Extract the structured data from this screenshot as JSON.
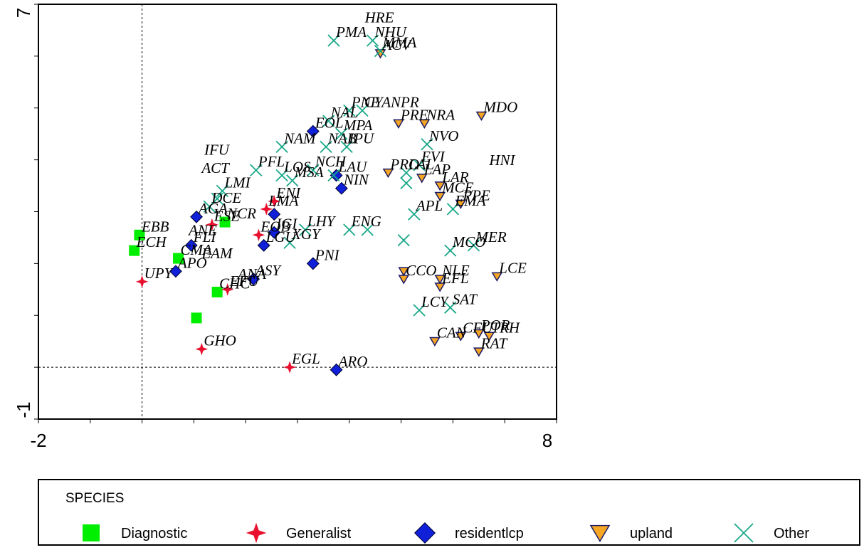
{
  "chart_data": {
    "type": "scatter",
    "xlim": [
      -2,
      8
    ],
    "ylim": [
      -1,
      7
    ],
    "x_ticks": [
      "-2",
      "8"
    ],
    "y_ticks": [
      "7",
      "-1"
    ],
    "reference_lines": {
      "x": 0,
      "y": 0
    },
    "grid": false,
    "legend": {
      "title": "SPECIES",
      "position": "bottom",
      "entries": [
        {
          "group": "diagnostic",
          "label": "Diagnostic",
          "marker": "square",
          "color": "#00EE00"
        },
        {
          "group": "generalist",
          "label": "Generalist",
          "marker": "star",
          "color": "#E8102E"
        },
        {
          "group": "resident",
          "label": "residentlcp",
          "marker": "diamond",
          "color": "#1020D8"
        },
        {
          "group": "upland",
          "label": "upland",
          "marker": "triangle-down",
          "color": "#F5A623"
        },
        {
          "group": "other",
          "label": "Other",
          "marker": "cross",
          "color": "#18A888"
        }
      ]
    },
    "series": [
      {
        "group": "diagnostic",
        "points": [
          {
            "x": -0.05,
            "y": 2.55,
            "label": "EBB"
          },
          {
            "x": -0.15,
            "y": 2.25,
            "label": "ECH"
          },
          {
            "x": 0.7,
            "y": 2.1,
            "label": "CMA"
          },
          {
            "x": 1.6,
            "y": 2.8,
            "label": "NCR"
          },
          {
            "x": 1.45,
            "y": 1.45,
            "label": "CHC"
          },
          {
            "x": 1.05,
            "y": 0.95,
            "label": ""
          }
        ]
      },
      {
        "group": "generalist",
        "points": [
          {
            "x": 0.0,
            "y": 1.65,
            "label": "UPY"
          },
          {
            "x": 1.35,
            "y": 2.75,
            "label": "ESE"
          },
          {
            "x": 2.4,
            "y": 3.05,
            "label": "LMA"
          },
          {
            "x": 2.55,
            "y": 3.2,
            "label": "ENI"
          },
          {
            "x": 2.25,
            "y": 2.55,
            "label": "EOB"
          },
          {
            "x": 1.65,
            "y": 1.5,
            "label": "EFU"
          },
          {
            "x": 1.15,
            "y": 0.35,
            "label": "GHO"
          },
          {
            "x": 2.85,
            "y": 0.0,
            "label": "EGL"
          }
        ]
      },
      {
        "group": "resident",
        "points": [
          {
            "x": 1.05,
            "y": 2.9,
            "label": "AGA"
          },
          {
            "x": 0.95,
            "y": 2.35,
            "label": "FLI"
          },
          {
            "x": 0.65,
            "y": 1.85,
            "label": "APO"
          },
          {
            "x": 2.35,
            "y": 2.35,
            "label": "LGU"
          },
          {
            "x": 2.55,
            "y": 2.6,
            "label": "IGI"
          },
          {
            "x": 2.55,
            "y": 2.95,
            "label": ""
          },
          {
            "x": 3.3,
            "y": 2.0,
            "label": "PNI"
          },
          {
            "x": 2.15,
            "y": 1.7,
            "label": "ASY"
          },
          {
            "x": 3.3,
            "y": 4.55,
            "label": "EOL"
          },
          {
            "x": 3.75,
            "y": 3.7,
            "label": "LAU"
          },
          {
            "x": 3.85,
            "y": 3.45,
            "label": "NIN"
          },
          {
            "x": 3.75,
            "y": -0.05,
            "label": "ARO"
          }
        ]
      },
      {
        "group": "upland",
        "points": [
          {
            "x": 6.55,
            "y": 4.85,
            "label": "MDO"
          },
          {
            "x": 5.45,
            "y": 4.7,
            "label": "NRA"
          },
          {
            "x": 4.95,
            "y": 4.7,
            "label": "PRE"
          },
          {
            "x": 4.75,
            "y": 3.75,
            "label": "PRO"
          },
          {
            "x": 5.4,
            "y": 3.65,
            "label": "LAP"
          },
          {
            "x": 5.75,
            "y": 3.5,
            "label": "LAR"
          },
          {
            "x": 5.75,
            "y": 3.3,
            "label": "MCE"
          },
          {
            "x": 6.15,
            "y": 3.15,
            "label": "PPE"
          },
          {
            "x": 5.05,
            "y": 1.85,
            "label": ""
          },
          {
            "x": 5.75,
            "y": 1.7,
            "label": "NLE"
          },
          {
            "x": 5.75,
            "y": 1.55,
            "label": "EFL"
          },
          {
            "x": 6.85,
            "y": 1.75,
            "label": "LCE"
          },
          {
            "x": 5.05,
            "y": 1.7,
            "label": "CCO"
          },
          {
            "x": 5.65,
            "y": 0.5,
            "label": "CAN"
          },
          {
            "x": 6.15,
            "y": 0.6,
            "label": "CFU"
          },
          {
            "x": 6.5,
            "y": 0.65,
            "label": "POR"
          },
          {
            "x": 6.7,
            "y": 0.6,
            "label": "TRH"
          },
          {
            "x": 6.5,
            "y": 0.3,
            "label": "RAT"
          },
          {
            "x": 4.6,
            "y": 6.05,
            "label": "ACV"
          }
        ]
      },
      {
        "group": "other",
        "points": [
          {
            "x": 3.7,
            "y": 6.3,
            "label": "PMA"
          },
          {
            "x": 4.45,
            "y": 6.3,
            "label": "NHU"
          },
          {
            "x": 4.6,
            "y": 6.1,
            "label": "MMA"
          },
          {
            "x": 4.0,
            "y": 4.95,
            "label": "PNE"
          },
          {
            "x": 4.25,
            "y": 4.95,
            "label": "CYANPR"
          },
          {
            "x": 3.6,
            "y": 4.75,
            "label": "NAL"
          },
          {
            "x": 3.85,
            "y": 4.5,
            "label": "MPA"
          },
          {
            "x": 3.55,
            "y": 4.25,
            "label": "NAB"
          },
          {
            "x": 3.95,
            "y": 4.25,
            "label": "IPU"
          },
          {
            "x": 2.7,
            "y": 4.25,
            "label": "NAM"
          },
          {
            "x": 5.5,
            "y": 4.3,
            "label": "NVO"
          },
          {
            "x": 5.35,
            "y": 3.9,
            "label": "EVI"
          },
          {
            "x": 5.1,
            "y": 3.75,
            "label": "LAL"
          },
          {
            "x": 5.1,
            "y": 3.55,
            "label": ""
          },
          {
            "x": 2.2,
            "y": 3.8,
            "label": "PFL"
          },
          {
            "x": 2.7,
            "y": 3.7,
            "label": "LOS"
          },
          {
            "x": 3.3,
            "y": 3.8,
            "label": "NCH"
          },
          {
            "x": 3.7,
            "y": 3.7,
            "label": ""
          },
          {
            "x": 1.55,
            "y": 3.4,
            "label": "LMI"
          },
          {
            "x": 1.45,
            "y": 3.25,
            "label": ""
          },
          {
            "x": 1.3,
            "y": 3.1,
            "label": "DCE"
          },
          {
            "x": 2.9,
            "y": 3.6,
            "label": "MSA"
          },
          {
            "x": 5.25,
            "y": 2.95,
            "label": "APL"
          },
          {
            "x": 4.0,
            "y": 2.65,
            "label": "ENG"
          },
          {
            "x": 4.35,
            "y": 2.65,
            "label": ""
          },
          {
            "x": 3.15,
            "y": 2.65,
            "label": "LHY"
          },
          {
            "x": 2.85,
            "y": 2.4,
            "label": "XGY"
          },
          {
            "x": 5.05,
            "y": 2.45,
            "label": ""
          },
          {
            "x": 5.95,
            "y": 2.25,
            "label": "MCO"
          },
          {
            "x": 6.4,
            "y": 2.35,
            "label": "MER"
          },
          {
            "x": 6.0,
            "y": 3.05,
            "label": "EMA"
          },
          {
            "x": 5.95,
            "y": 1.15,
            "label": "SAT"
          },
          {
            "x": 5.35,
            "y": 1.1,
            "label": "LCY"
          }
        ]
      }
    ],
    "free_labels": [
      {
        "x": 4.3,
        "y": 6.65,
        "label": "HRE"
      },
      {
        "x": 1.2,
        "y": 4.1,
        "label": "IFU"
      },
      {
        "x": 1.15,
        "y": 3.75,
        "label": "ACT"
      },
      {
        "x": 6.7,
        "y": 3.9,
        "label": "HNI"
      },
      {
        "x": 0.9,
        "y": 2.55,
        "label": "ANE"
      },
      {
        "x": 1.15,
        "y": 2.1,
        "label": "EAM"
      },
      {
        "x": 1.85,
        "y": 1.7,
        "label": "ANA"
      }
    ]
  }
}
